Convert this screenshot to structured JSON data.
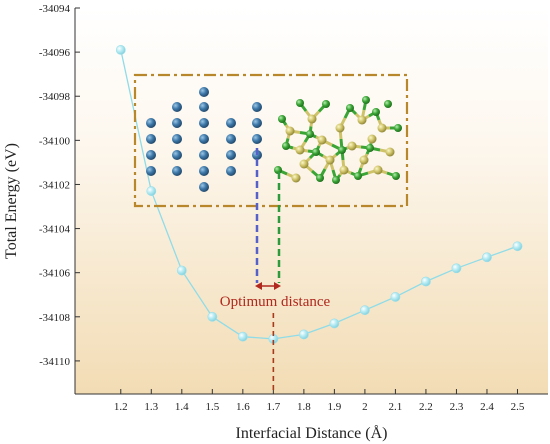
{
  "chart_data": {
    "type": "line",
    "xlabel": "Interfacial Distance (Å)",
    "ylabel": "Total Energy (eV)",
    "xlim": [
      1.05,
      2.6
    ],
    "ylim": [
      -34111.5,
      -34094
    ],
    "x_ticks": [
      "1.2",
      "1.3",
      "1.4",
      "1.5",
      "1.6",
      "1.7",
      "1.8",
      "1.9",
      "2",
      "2.1",
      "2.2",
      "2.3",
      "2.4",
      "2.5"
    ],
    "y_ticks": [
      "-34094",
      "-34096",
      "-34098",
      "-34100",
      "-34102",
      "-34104",
      "-34106",
      "-34108",
      "-34110"
    ],
    "x": [
      1.2,
      1.3,
      1.4,
      1.5,
      1.6,
      1.7,
      1.8,
      1.9,
      2.0,
      2.1,
      2.2,
      2.3,
      2.4,
      2.5
    ],
    "y": [
      -34095.9,
      -34102.3,
      -34105.9,
      -34108.0,
      -34108.9,
      -34109.0,
      -34108.8,
      -34108.3,
      -34107.7,
      -34107.1,
      -34106.4,
      -34105.8,
      -34105.3,
      -34104.8
    ],
    "series_color": "#8fdce8",
    "background_gradient": [
      "#ffffff",
      "#f4dfb8"
    ],
    "grid": false,
    "legend": "none",
    "annotation": {
      "text": "Optimum distance",
      "x": 1.7,
      "color": "#b0281e"
    },
    "inset": {
      "description_colors": {
        "frame": "#b8862b",
        "metal_atom": "#3d78a8",
        "yellow_atom": "#c9c46a",
        "green_atom": "#3aa535",
        "left_marker": "#5560c8",
        "right_marker": "#2e9a3e"
      }
    }
  }
}
